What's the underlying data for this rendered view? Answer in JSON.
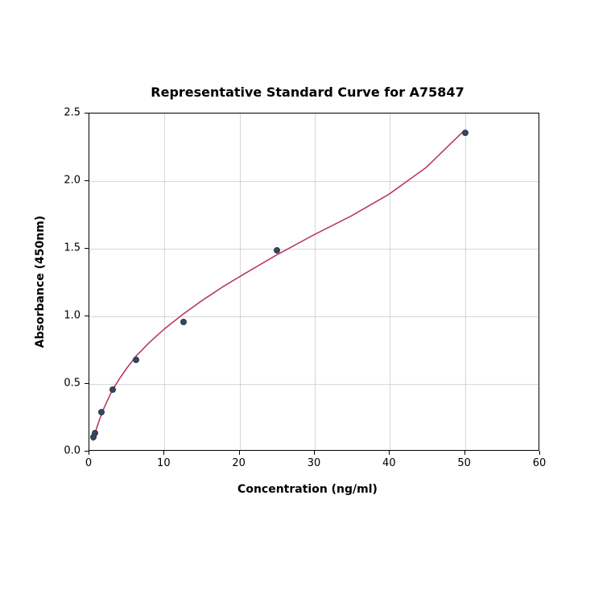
{
  "chart": {
    "type": "scatter-with-curve",
    "title": "Representative Standard Curve for A75847",
    "title_fontsize": 16,
    "xlabel": "Concentration (ng/ml)",
    "ylabel": "Absorbance (450nm)",
    "axis_label_fontsize": 14,
    "tick_fontsize": 13,
    "xlim": [
      0,
      60
    ],
    "ylim": [
      0,
      2.5
    ],
    "xticks": [
      0,
      10,
      20,
      30,
      40,
      50,
      60
    ],
    "yticks": [
      0.0,
      0.5,
      1.0,
      1.5,
      2.0,
      2.5
    ],
    "xtick_labels": [
      "0",
      "10",
      "20",
      "30",
      "40",
      "50",
      "60"
    ],
    "ytick_labels": [
      "0.0",
      "0.5",
      "1.0",
      "1.5",
      "2.0",
      "2.5"
    ],
    "background_color": "#ffffff",
    "grid_color": "#b0b0b0",
    "grid_opacity": 0.5,
    "border_color": "#000000",
    "scatter": {
      "x": [
        0.5,
        0.78,
        1.56,
        3.12,
        6.25,
        12.5,
        25,
        50
      ],
      "y": [
        0.11,
        0.135,
        0.29,
        0.46,
        0.68,
        0.96,
        1.49,
        2.36
      ],
      "marker_color": "#35475e",
      "marker_edge_color": "#2a3a4d",
      "marker_size": 8
    },
    "curve": {
      "color": "#b83a5e",
      "width": 1.6,
      "x": [
        0.5,
        1,
        1.5,
        2,
        3,
        4,
        5,
        6.25,
        8,
        10,
        12.5,
        15,
        18,
        21,
        25,
        30,
        35,
        40,
        45,
        50
      ],
      "y": [
        0.075,
        0.17,
        0.25,
        0.32,
        0.44,
        0.53,
        0.61,
        0.7,
        0.8,
        0.9,
        1.01,
        1.11,
        1.22,
        1.32,
        1.45,
        1.6,
        1.74,
        1.9,
        2.1,
        2.37
      ]
    }
  }
}
